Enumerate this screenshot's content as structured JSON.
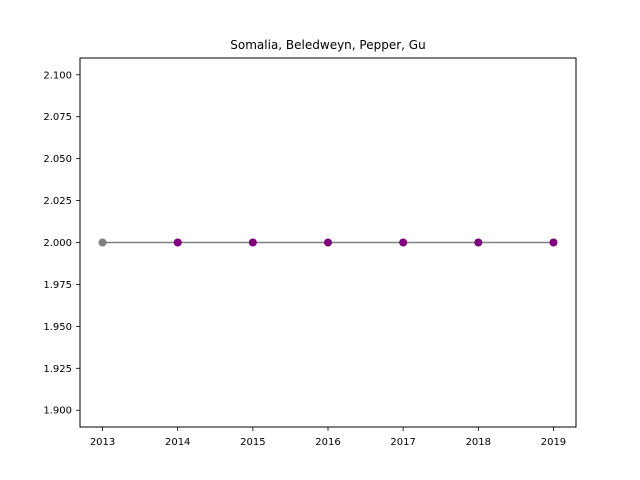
{
  "chart_data": {
    "type": "line",
    "title": "Somalia, Beledweyn, Pepper, Gu",
    "xlabel": "",
    "ylabel": "",
    "x": [
      2013,
      2014,
      2015,
      2016,
      2017,
      2018,
      2019
    ],
    "series": [
      {
        "values": [
          2.0,
          2.0,
          2.0,
          2.0,
          2.0,
          2.0,
          2.0
        ],
        "line_color": "#808080",
        "marker_colors": [
          "#808080",
          "#800080",
          "#800080",
          "#800080",
          "#800080",
          "#800080",
          "#800080"
        ]
      }
    ],
    "xlim": [
      2012.7,
      2019.3
    ],
    "ylim": [
      1.89,
      2.11
    ],
    "xticks": [
      "2013",
      "2014",
      "2015",
      "2016",
      "2017",
      "2018",
      "2019"
    ],
    "yticks": [
      "1.900",
      "1.925",
      "1.950",
      "1.975",
      "2.000",
      "2.025",
      "2.050",
      "2.075",
      "2.100"
    ],
    "grid": false,
    "legend": "none"
  }
}
